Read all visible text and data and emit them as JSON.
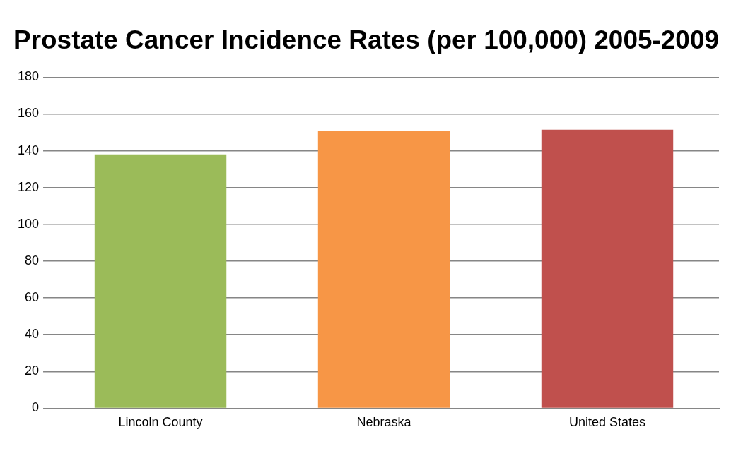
{
  "chart_data": {
    "type": "bar",
    "title": "Prostate Cancer Incidence Rates (per 100,000) 2005-2009",
    "categories": [
      "Lincoln County",
      "Nebraska",
      "United States"
    ],
    "values": [
      138,
      151,
      151.5
    ],
    "colors": [
      "#9bbb59",
      "#f79646",
      "#c0504d"
    ],
    "ylim": [
      0,
      180
    ],
    "yticks": [
      0,
      20,
      40,
      60,
      80,
      100,
      120,
      140,
      160,
      180
    ],
    "grid": "y",
    "legend": false
  }
}
